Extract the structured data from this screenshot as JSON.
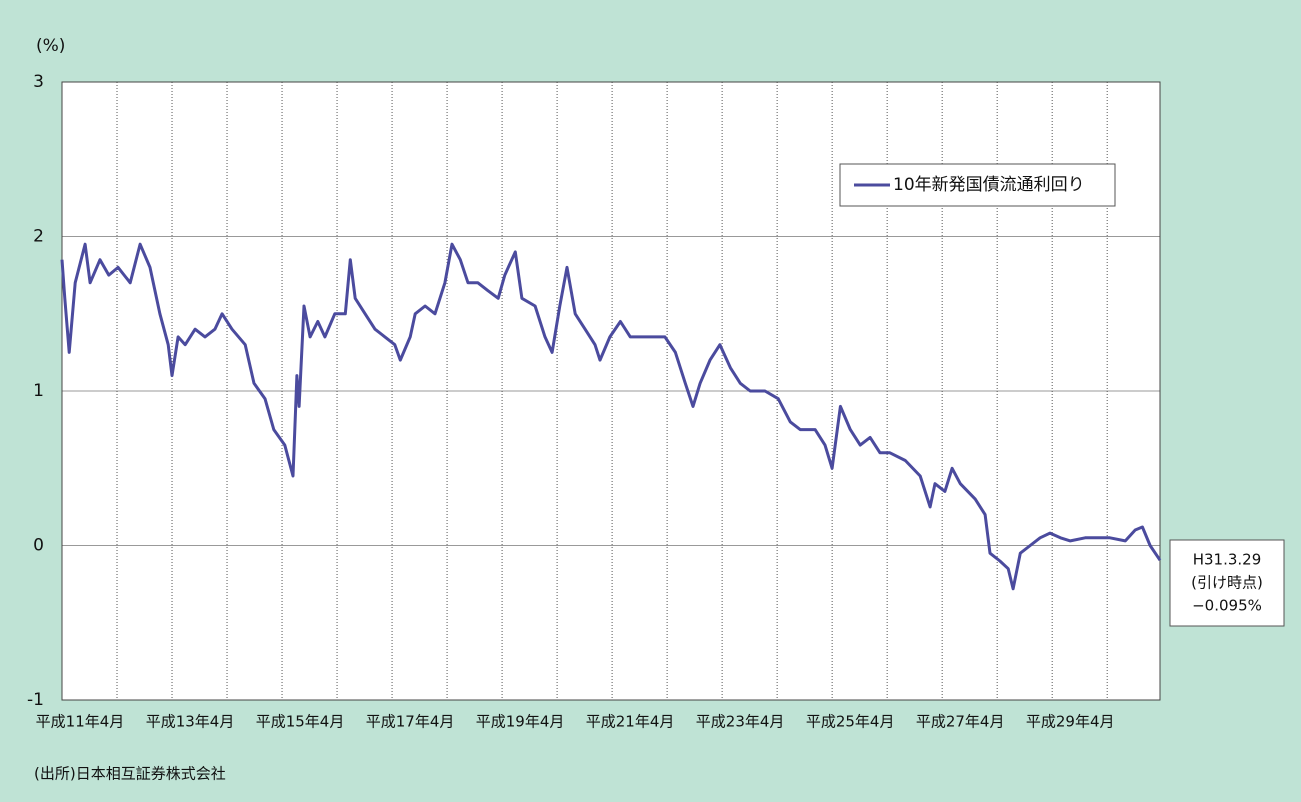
{
  "chart_data": {
    "type": "line",
    "y_label": "(%)",
    "source": "(出所)日本相互証券株式会社",
    "annotation": [
      "H31.3.29",
      "(引け時点)",
      "−0.095%"
    ],
    "legend": "corner-upper-right",
    "grid": true,
    "xlim": [
      11.25,
      31.21
    ],
    "ylim": [
      -1,
      3
    ],
    "yticks": [
      3,
      2,
      1,
      0,
      -1
    ],
    "xticks": [
      {
        "value": 11.25,
        "label": "平成11年4月"
      },
      {
        "value": 13.25,
        "label": "平成13年4月"
      },
      {
        "value": 15.25,
        "label": "平成15年4月"
      },
      {
        "value": 17.25,
        "label": "平成17年4月"
      },
      {
        "value": 19.25,
        "label": "平成19年4月"
      },
      {
        "value": 21.25,
        "label": "平成21年4月"
      },
      {
        "value": 23.25,
        "label": "平成23年4月"
      },
      {
        "value": 25.25,
        "label": "平成25年4月"
      },
      {
        "value": 27.25,
        "label": "平成27年4月"
      },
      {
        "value": 29.25,
        "label": "平成29年4月"
      }
    ],
    "xminor_ticks": [
      12.25,
      14.25,
      16.25,
      18.25,
      20.25,
      22.25,
      24.25,
      26.25,
      28.25,
      30.25
    ],
    "x": [
      11.25,
      11.3,
      11.38,
      11.49,
      11.67,
      11.76,
      11.94,
      12.1,
      12.27,
      12.49,
      12.67,
      12.85,
      13.03,
      13.18,
      13.25,
      13.36,
      13.49,
      13.67,
      13.85,
      14.03,
      14.16,
      14.34,
      14.58,
      14.74,
      14.94,
      15.1,
      15.3,
      15.45,
      15.52,
      15.56,
      15.65,
      15.76,
      15.9,
      16.03,
      16.21,
      16.4,
      16.49,
      16.58,
      16.76,
      16.94,
      17.12,
      17.3,
      17.4,
      17.58,
      17.67,
      17.85,
      18.03,
      18.21,
      18.34,
      18.49,
      18.63,
      18.81,
      18.99,
      19.18,
      19.3,
      19.49,
      19.61,
      19.85,
      20.03,
      20.16,
      20.3,
      20.43,
      20.58,
      20.76,
      20.94,
      21.03,
      21.21,
      21.4,
      21.58,
      21.76,
      22.03,
      22.21,
      22.4,
      22.58,
      22.72,
      22.85,
      23.03,
      23.21,
      23.4,
      23.58,
      23.76,
      24.03,
      24.27,
      24.49,
      24.67,
      24.94,
      25.12,
      25.25,
      25.4,
      25.58,
      25.76,
      25.94,
      26.12,
      26.3,
      26.58,
      26.85,
      27.03,
      27.12,
      27.3,
      27.43,
      27.58,
      27.85,
      28.03,
      28.12,
      28.3,
      28.45,
      28.54,
      28.67,
      28.85,
      29.03,
      29.21,
      29.4,
      29.58,
      29.85,
      30.12,
      30.3,
      30.58,
      30.76,
      30.89,
      31.03,
      31.21
    ],
    "series": [
      {
        "name": "10年新発国債流通利回り",
        "color": "#4b4b9e",
        "values": [
          1.85,
          1.6,
          1.25,
          1.7,
          1.95,
          1.7,
          1.85,
          1.75,
          1.8,
          1.7,
          1.95,
          1.8,
          1.5,
          1.3,
          1.1,
          1.35,
          1.3,
          1.4,
          1.35,
          1.4,
          1.5,
          1.4,
          1.3,
          1.05,
          0.95,
          0.75,
          0.65,
          0.45,
          1.1,
          0.9,
          1.55,
          1.35,
          1.45,
          1.35,
          1.5,
          1.5,
          1.85,
          1.6,
          1.5,
          1.4,
          1.35,
          1.3,
          1.2,
          1.35,
          1.5,
          1.55,
          1.5,
          1.7,
          1.95,
          1.85,
          1.7,
          1.7,
          1.65,
          1.6,
          1.75,
          1.9,
          1.6,
          1.55,
          1.35,
          1.25,
          1.55,
          1.8,
          1.5,
          1.4,
          1.3,
          1.2,
          1.35,
          1.45,
          1.35,
          1.35,
          1.35,
          1.35,
          1.25,
          1.05,
          0.9,
          1.05,
          1.2,
          1.3,
          1.15,
          1.05,
          1.0,
          1.0,
          0.95,
          0.8,
          0.75,
          0.75,
          0.65,
          0.5,
          0.9,
          0.75,
          0.65,
          0.7,
          0.6,
          0.6,
          0.55,
          0.45,
          0.25,
          0.4,
          0.35,
          0.5,
          0.4,
          0.3,
          0.2,
          -0.05,
          -0.1,
          -0.15,
          -0.28,
          -0.05,
          0.0,
          0.05,
          0.08,
          0.05,
          0.03,
          0.05,
          0.05,
          0.05,
          0.03,
          0.1,
          0.12,
          0.0,
          -0.095
        ]
      }
    ]
  }
}
